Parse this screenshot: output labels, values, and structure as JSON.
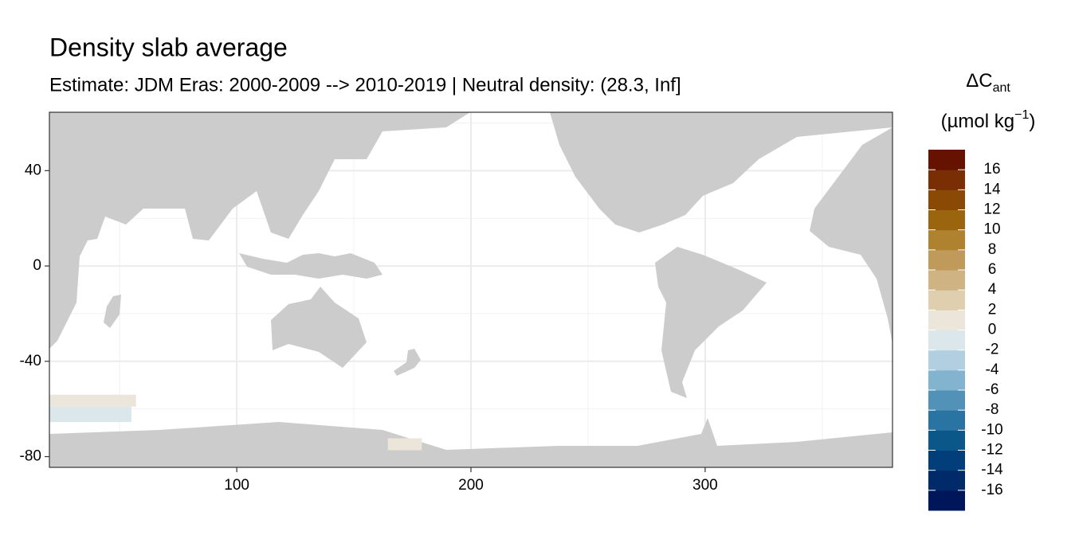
{
  "chart_data": {
    "type": "map",
    "title": "Density slab average",
    "subtitle": "Estimate: JDM Eras: 2000-2009 --> 2010-2019 | Neutral density: (28.3, Inf]",
    "xlim": [
      20,
      380
    ],
    "ylim": [
      -84.5,
      64.5
    ],
    "xticks": [
      100,
      200,
      300
    ],
    "yticks": [
      -80,
      -40,
      0,
      40
    ],
    "grid": true,
    "legend": {
      "title": "ΔC",
      "title_sub": "ant",
      "unit_pre": "(µmol kg",
      "unit_sup": "−1",
      "unit_post": ")",
      "lim": [
        -18,
        18
      ],
      "ticks": [
        -16,
        -14,
        -12,
        -10,
        -8,
        -6,
        -4,
        -2,
        0,
        2,
        4,
        6,
        8,
        10,
        12,
        14,
        16
      ],
      "colors": [
        "#00165a",
        "#012a6a",
        "#023f7a",
        "#0c578a",
        "#2a74a3",
        "#5392b8",
        "#82b3cf",
        "#b1cfe0",
        "#dce7ec",
        "#ece6da",
        "#e0cfae",
        "#cfb383",
        "#bf9a5a",
        "#af8230",
        "#9b650f",
        "#8a4a06",
        "#7a2e04",
        "#651200"
      ]
    },
    "patches": [
      {
        "lon": [
          20,
          57
        ],
        "lat": [
          -59,
          -54
        ],
        "value": 1
      },
      {
        "lon": [
          20,
          55
        ],
        "lat": [
          -65.5,
          -59
        ],
        "value": -1
      },
      {
        "lon": [
          164.5,
          179
        ],
        "lat": [
          -77.3,
          -72.3
        ],
        "value": 1
      }
    ]
  }
}
